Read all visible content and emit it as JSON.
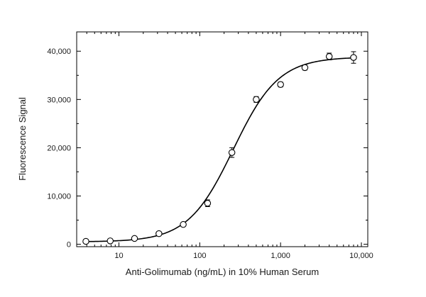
{
  "chart_data": {
    "type": "scatter",
    "xlabel": "Anti-Golimumab (ng/mL) in 10% Human Serum",
    "ylabel": "Fluorescence Signal",
    "x_scale": "log",
    "xlim": [
      3,
      12000
    ],
    "ylim": [
      -500,
      44000
    ],
    "x_ticks": [
      {
        "value": 10,
        "label": "10"
      },
      {
        "value": 100,
        "label": "100"
      },
      {
        "value": 1000,
        "label": "1,000"
      },
      {
        "value": 10000,
        "label": "10,000"
      }
    ],
    "y_ticks": [
      {
        "value": 0,
        "label": "0"
      },
      {
        "value": 10000,
        "label": "10,000"
      },
      {
        "value": 20000,
        "label": "20,000"
      },
      {
        "value": 30000,
        "label": "30,000"
      },
      {
        "value": 40000,
        "label": "40,000"
      }
    ],
    "grid": false,
    "legend": "none",
    "series": [
      {
        "kind": "points",
        "marker": "open-circle",
        "error_bars": true,
        "points": [
          {
            "x": 3.9,
            "y": 600,
            "err": 250
          },
          {
            "x": 7.8,
            "y": 700,
            "err": 250
          },
          {
            "x": 15.6,
            "y": 1200,
            "err": 250
          },
          {
            "x": 31.25,
            "y": 2200,
            "err": 300
          },
          {
            "x": 62.5,
            "y": 4100,
            "err": 300
          },
          {
            "x": 125,
            "y": 8500,
            "err": 700
          },
          {
            "x": 250,
            "y": 19000,
            "err": 1000
          },
          {
            "x": 500,
            "y": 30000,
            "err": 600
          },
          {
            "x": 1000,
            "y": 33100,
            "err": 500
          },
          {
            "x": 2000,
            "y": 36600,
            "err": 500
          },
          {
            "x": 4000,
            "y": 38900,
            "err": 700
          },
          {
            "x": 8000,
            "y": 38700,
            "err": 1200
          }
        ]
      },
      {
        "kind": "fit",
        "model": "4PL",
        "bottom": 500,
        "top": 38800,
        "ec50": 260,
        "hill": 1.55,
        "x_from": 3.9,
        "x_to": 8000
      }
    ]
  }
}
